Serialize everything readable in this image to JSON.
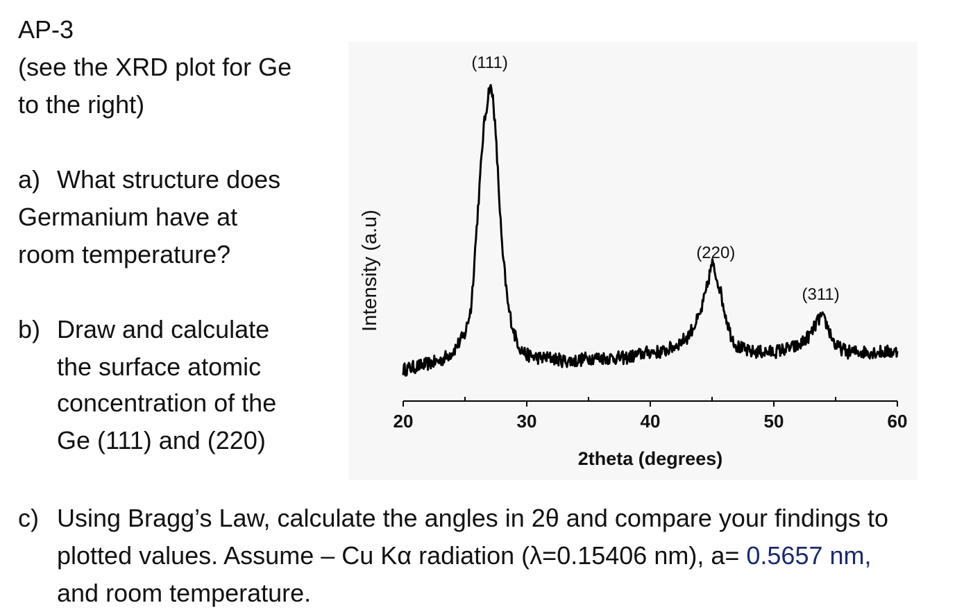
{
  "header": {
    "title": "AP-3",
    "subtitle_line1": "(see the XRD plot for Ge",
    "subtitle_line2": "to the right)"
  },
  "questions": {
    "a": {
      "marker": "a)",
      "line1": "What structure does",
      "line2": "Germanium have at",
      "line3": "room temperature?"
    },
    "b": {
      "marker": "b)",
      "line1": "Draw and calculate",
      "line2": "the surface atomic",
      "line3": "concentration of the",
      "line4": "Ge (111) and (220)"
    },
    "c": {
      "marker": "c)",
      "line1": "Using Bragg’s Law, calculate the angles in 2θ and compare your findings to",
      "line2_a": "plotted values.  Assume – Cu Kα radiation (λ=0.15406 nm), a= ",
      "line2_b": "0.5657 nm,",
      "line3": "and room temperature."
    }
  },
  "colors": {
    "text": "#111111",
    "highlight": "#1a2a6c",
    "plot_background": "#f7f7f7",
    "line": "#000000"
  },
  "chart_data": {
    "type": "line",
    "title": "",
    "xlabel": "2theta (degrees)",
    "ylabel": "Intensity (a.u)",
    "xlim": [
      20,
      60
    ],
    "ylim": [
      0,
      1
    ],
    "xticks": [
      20,
      30,
      40,
      50,
      60
    ],
    "grid": false,
    "legend": "none",
    "series": [
      {
        "x": [
          20,
          21,
          22,
          23,
          24,
          25,
          25.5,
          26,
          26.5,
          27,
          27.3,
          27.6,
          28,
          28.5,
          29,
          29.5,
          30,
          31,
          32,
          33,
          34,
          35,
          36,
          37,
          38,
          39,
          40,
          41,
          42,
          43,
          44,
          44.5,
          45,
          45.3,
          45.6,
          46,
          46.5,
          47,
          48,
          49,
          50,
          51,
          52,
          53,
          53.5,
          53.8,
          54.2,
          54.7,
          55,
          56,
          57,
          58,
          59,
          60
        ],
        "y": [
          0.04,
          0.05,
          0.06,
          0.07,
          0.1,
          0.16,
          0.25,
          0.55,
          0.85,
          1.0,
          0.95,
          0.75,
          0.45,
          0.25,
          0.16,
          0.11,
          0.09,
          0.08,
          0.08,
          0.07,
          0.07,
          0.08,
          0.08,
          0.08,
          0.08,
          0.09,
          0.1,
          0.1,
          0.12,
          0.15,
          0.22,
          0.3,
          0.4,
          0.36,
          0.32,
          0.24,
          0.16,
          0.12,
          0.1,
          0.1,
          0.1,
          0.11,
          0.12,
          0.16,
          0.2,
          0.22,
          0.2,
          0.15,
          0.12,
          0.1,
          0.1,
          0.1,
          0.1,
          0.1
        ]
      }
    ],
    "annotations": [
      {
        "text": "(111)",
        "x": 27.0
      },
      {
        "text": "(220)",
        "x": 45.3
      },
      {
        "text": "(311)",
        "x": 53.8
      }
    ]
  }
}
